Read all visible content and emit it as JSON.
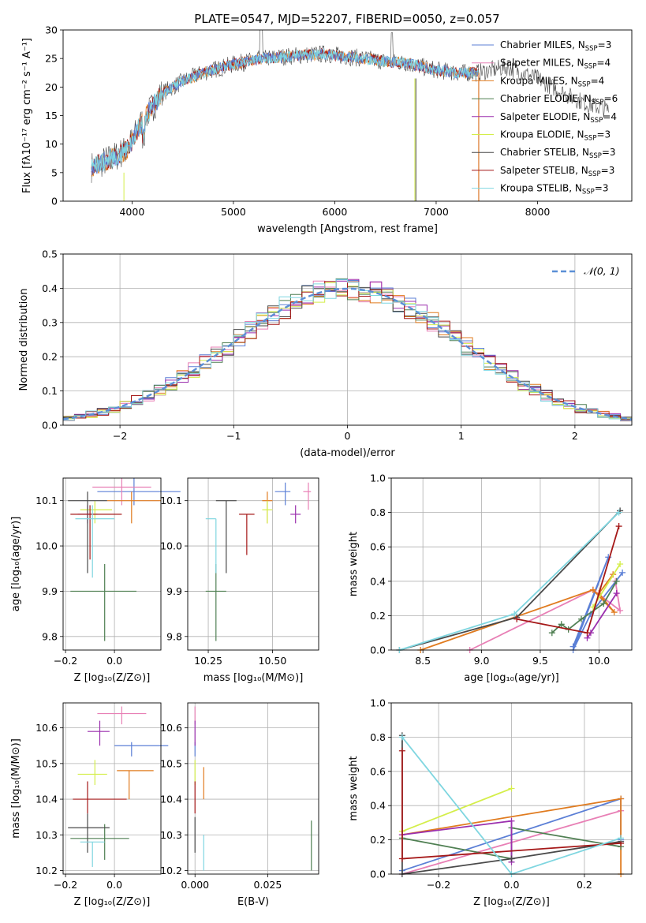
{
  "figure_title": "PLATE=0547, MJD=52207, FIBERID=0050, z=0.057",
  "colors": {
    "c_miles": "#5b7fd6",
    "s_miles": "#e87fb5",
    "k_miles": "#e07b1f",
    "c_elodie": "#4f7f52",
    "s_elodie": "#9b2fae",
    "k_elodie": "#d4ee4a",
    "c_stelib": "#4a4a4a",
    "s_stelib": "#a51818",
    "k_stelib": "#7fd6e0"
  },
  "chart_data": [
    {
      "id": "spectrum",
      "type": "line",
      "title": "PLATE=0547, MJD=52207, FIBERID=0050, z=0.057",
      "xlabel": "wavelength [Angstrom, rest frame]",
      "ylabel": "Flux [fλ10⁻¹⁷ erg cm⁻² s⁻¹ A⁻¹]",
      "xlim": [
        3320,
        8930
      ],
      "ylim": [
        0,
        30
      ],
      "xticks": [
        4000,
        5000,
        6000,
        7000,
        8000
      ],
      "yticks": [
        0,
        5,
        10,
        15,
        20,
        25,
        30
      ],
      "continuum": {
        "x": [
          3600,
          3800,
          3950,
          4100,
          4300,
          4500,
          4700,
          5000,
          5300,
          5600,
          5900,
          6200,
          6500,
          6700,
          7000,
          7200,
          7400,
          7700,
          8000,
          8300,
          8500,
          8700
        ],
        "y": [
          6,
          7.5,
          9,
          14,
          19,
          21,
          22.5,
          24,
          25,
          25.5,
          25.8,
          25.2,
          24.5,
          24.2,
          23,
          22.5,
          22.5,
          23.5,
          21.5,
          18.5,
          17,
          16
        ]
      },
      "series_legend": [
        {
          "name": "Chabrier MILES, N",
          "sub": "SSP",
          "suffix": "=3"
        },
        {
          "name": "Salpeter MILES, N",
          "sub": "SSP",
          "suffix": "=4"
        },
        {
          "name": "Kroupa MILES, N",
          "sub": "SSP",
          "suffix": "=4"
        },
        {
          "name": "Chabrier ELODIE, N",
          "sub": "SSP",
          "suffix": "=6"
        },
        {
          "name": "Salpeter ELODIE, N",
          "sub": "SSP",
          "suffix": "=4"
        },
        {
          "name": "Kroupa ELODIE, N",
          "sub": "SSP",
          "suffix": "=3"
        },
        {
          "name": "Chabrier STELIB, N",
          "sub": "SSP",
          "suffix": "=3"
        },
        {
          "name": "Salpeter STELIB, N",
          "sub": "SSP",
          "suffix": "=3"
        },
        {
          "name": "Kroupa STELIB, N",
          "sub": "SSP",
          "suffix": "=3"
        }
      ],
      "legend_position": "top-right"
    },
    {
      "id": "residuals",
      "type": "histogram",
      "xlabel": "(data-model)/error",
      "ylabel": "Normed distribution",
      "xlim": [
        -2.5,
        2.5
      ],
      "ylim": [
        0,
        0.5
      ],
      "xticks": [
        -2,
        -1,
        0,
        1,
        2
      ],
      "yticks": [
        0.0,
        0.1,
        0.2,
        0.3,
        0.4,
        0.5
      ],
      "bin_width": 0.1,
      "legend_label": "𝒩(0, 1)",
      "reference_curve": "normal(0,1)",
      "grid": true,
      "legend_position": "top-right"
    },
    {
      "id": "age_vs_Z",
      "type": "errorbar",
      "xlabel": "Z [log₁₀(Z/Z⊙)]",
      "ylabel": "age  [log₁₀(age/yr)]",
      "xlim": [
        -0.21,
        0.19
      ],
      "ylim": [
        9.77,
        10.15
      ],
      "xticks": [
        -0.2,
        0.0
      ],
      "yticks": [
        9.8,
        9.9,
        10.0,
        10.1
      ],
      "points": [
        {
          "s": "c_miles",
          "x": 0.08,
          "y": 10.12,
          "xl": 0.15,
          "xr": 0.19,
          "yl": 0.03,
          "yh": 0.03
        },
        {
          "s": "s_miles",
          "x": 0.03,
          "y": 10.13,
          "xl": 0.12,
          "xr": 0.12,
          "yl": 0.04,
          "yh": 0.02
        },
        {
          "s": "k_miles",
          "x": 0.07,
          "y": 10.1,
          "xl": 0.1,
          "xr": 0.12,
          "yl": 0.05,
          "yh": 0.02
        },
        {
          "s": "c_elodie",
          "x": -0.04,
          "y": 9.9,
          "xl": 0.14,
          "xr": 0.13,
          "yl": 0.11,
          "yh": 0.06
        },
        {
          "s": "s_elodie",
          "x": -0.11,
          "y": 10.07,
          "xl": 0.04,
          "xr": 0.04,
          "yl": 0.02,
          "yh": 0.02
        },
        {
          "s": "k_elodie",
          "x": -0.08,
          "y": 10.08,
          "xl": 0.06,
          "xr": 0.07,
          "yl": 0.03,
          "yh": 0.02
        },
        {
          "s": "c_stelib",
          "x": -0.11,
          "y": 10.1,
          "xl": 0.08,
          "xr": 0.08,
          "yl": 0.16,
          "yh": 0.02
        },
        {
          "s": "s_stelib",
          "x": -0.1,
          "y": 10.07,
          "xl": 0.08,
          "xr": 0.13,
          "yl": 0.1,
          "yh": 0.02
        },
        {
          "s": "k_stelib",
          "x": -0.09,
          "y": 10.06,
          "xl": 0.07,
          "xr": 0.09,
          "yl": 0.13,
          "yh": 0.03
        }
      ]
    },
    {
      "id": "age_vs_mass",
      "type": "errorbar",
      "xlabel": "mass [log₁₀(M/M⊙)]",
      "xlim": [
        10.17,
        10.68
      ],
      "ylim": [
        9.77,
        10.15
      ],
      "xticks": [
        10.25,
        10.5
      ],
      "yticks": [
        9.8,
        9.9,
        10.0,
        10.1
      ],
      "points": [
        {
          "s": "c_miles",
          "x": 10.55,
          "y": 10.12,
          "xl": 0.04,
          "xr": 0.02,
          "yl": 0.03,
          "yh": 0.02
        },
        {
          "s": "s_miles",
          "x": 10.64,
          "y": 10.12,
          "xl": 0.02,
          "xr": 0.01,
          "yl": 0.04,
          "yh": 0.02
        },
        {
          "s": "k_miles",
          "x": 10.48,
          "y": 10.1,
          "xl": 0.02,
          "xr": 0.02,
          "yl": 0.05,
          "yh": 0.02
        },
        {
          "s": "c_elodie",
          "x": 10.28,
          "y": 9.9,
          "xl": 0.04,
          "xr": 0.04,
          "yl": 0.11,
          "yh": 0.06
        },
        {
          "s": "s_elodie",
          "x": 10.59,
          "y": 10.07,
          "xl": 0.02,
          "xr": 0.02,
          "yl": 0.02,
          "yh": 0.02
        },
        {
          "s": "k_elodie",
          "x": 10.48,
          "y": 10.08,
          "xl": 0.02,
          "xr": 0.02,
          "yl": 0.03,
          "yh": 0.02
        },
        {
          "s": "c_stelib",
          "x": 10.32,
          "y": 10.1,
          "xl": 0.04,
          "xr": 0.04,
          "yl": 0.16,
          "yh": 0.0
        },
        {
          "s": "s_stelib",
          "x": 10.4,
          "y": 10.07,
          "xl": 0.03,
          "xr": 0.03,
          "yl": 0.09,
          "yh": 0.0
        },
        {
          "s": "k_stelib",
          "x": 10.28,
          "y": 10.06,
          "xl": 0.04,
          "xr": 0.0,
          "yl": 0.12,
          "yh": 0.0
        }
      ]
    },
    {
      "id": "weight_vs_age",
      "type": "line",
      "xlabel": "age  [log₁₀(age/yr)]",
      "ylabel": "mass weight",
      "xlim": [
        8.23,
        10.28
      ],
      "ylim": [
        0,
        1.0
      ],
      "xticks": [
        8.5,
        9.0,
        9.5,
        10.0
      ],
      "yticks": [
        0.0,
        0.2,
        0.4,
        0.6,
        0.8,
        1.0
      ],
      "series": [
        {
          "s": "c_miles",
          "x": [
            9.78,
            10.08,
            9.78,
            9.93,
            10.2
          ],
          "y": [
            0.02,
            0.54,
            0.0,
            0.21,
            0.45
          ]
        },
        {
          "s": "s_miles",
          "x": [
            8.9,
            9.95,
            10.18,
            10.14
          ],
          "y": [
            0.0,
            0.35,
            0.23,
            0.4
          ]
        },
        {
          "s": "k_miles",
          "x": [
            8.48,
            9.95,
            10.13,
            10.0,
            10.12
          ],
          "y": [
            0.0,
            0.35,
            0.22,
            0.33,
            0.44
          ]
        },
        {
          "s": "c_elodie",
          "x": [
            9.6,
            9.68,
            9.74,
            9.85,
            10.04,
            10.15
          ],
          "y": [
            0.1,
            0.15,
            0.12,
            0.18,
            0.27,
            0.4
          ]
        },
        {
          "s": "s_elodie",
          "x": [
            9.9,
            9.93,
            10.15
          ],
          "y": [
            0.07,
            0.1,
            0.33
          ]
        },
        {
          "s": "k_elodie",
          "x": [
            9.95,
            10.18
          ],
          "y": [
            0.25,
            0.5
          ]
        },
        {
          "s": "c_stelib",
          "x": [
            8.3,
            9.3,
            10.18
          ],
          "y": [
            0.0,
            0.19,
            0.81
          ]
        },
        {
          "s": "s_stelib",
          "x": [
            9.3,
            9.9,
            10.17
          ],
          "y": [
            0.18,
            0.1,
            0.72
          ]
        },
        {
          "s": "k_stelib",
          "x": [
            8.3,
            9.28,
            10.17
          ],
          "y": [
            0.0,
            0.21,
            0.8
          ]
        }
      ]
    },
    {
      "id": "mass_vs_Z",
      "type": "errorbar",
      "xlabel": "Z [log₁₀(Z/Z⊙)]",
      "ylabel": "mass [log₁₀(M/M⊙)]",
      "xlim": [
        -0.21,
        0.19
      ],
      "ylim": [
        10.19,
        10.67
      ],
      "xticks": [
        -0.2,
        0.0
      ],
      "yticks": [
        10.2,
        10.3,
        10.4,
        10.5,
        10.6
      ],
      "points": [
        {
          "s": "c_miles",
          "x": 0.07,
          "y": 10.55,
          "xl": 0.07,
          "xr": 0.15,
          "yl": 0.03,
          "yh": 0.01
        },
        {
          "s": "s_miles",
          "x": 0.03,
          "y": 10.64,
          "xl": 0.1,
          "xr": 0.1,
          "yl": 0.03,
          "yh": 0.02
        },
        {
          "s": "k_miles",
          "x": 0.06,
          "y": 10.48,
          "xl": 0.05,
          "xr": 0.1,
          "yl": 0.08,
          "yh": 0.0
        },
        {
          "s": "c_elodie",
          "x": -0.04,
          "y": 10.29,
          "xl": 0.14,
          "xr": 0.1,
          "yl": 0.06,
          "yh": 0.04
        },
        {
          "s": "s_elodie",
          "x": -0.06,
          "y": 10.59,
          "xl": 0.05,
          "xr": 0.04,
          "yl": 0.04,
          "yh": 0.03
        },
        {
          "s": "k_elodie",
          "x": -0.08,
          "y": 10.47,
          "xl": 0.07,
          "xr": 0.05,
          "yl": 0.03,
          "yh": 0.04
        },
        {
          "s": "c_stelib",
          "x": -0.11,
          "y": 10.32,
          "xl": 0.08,
          "xr": 0.09,
          "yl": 0.07,
          "yh": 0.04
        },
        {
          "s": "s_stelib",
          "x": -0.11,
          "y": 10.4,
          "xl": 0.06,
          "xr": 0.16,
          "yl": 0.04,
          "yh": 0.05
        },
        {
          "s": "k_stelib",
          "x": -0.09,
          "y": 10.28,
          "xl": 0.05,
          "xr": 0.05,
          "yl": 0.07,
          "yh": 0.0
        }
      ]
    },
    {
      "id": "mass_vs_EBV",
      "type": "errorbar",
      "xlabel": "E(B-V)",
      "xlim": [
        -0.0025,
        0.0425
      ],
      "ylim": [
        10.19,
        10.67
      ],
      "xticks": [
        0.0,
        0.025
      ],
      "xticklabels": [
        "0.000",
        "0.025"
      ],
      "yticks": [
        10.2,
        10.3,
        10.4,
        10.5,
        10.6
      ],
      "points": [
        {
          "s": "c_miles",
          "x": 0.0,
          "y": 10.55,
          "xl": 0,
          "xr": 0,
          "yl": 0.03,
          "yh": 0.01
        },
        {
          "s": "s_miles",
          "x": 0.0,
          "y": 10.64,
          "xl": 0,
          "xr": 0,
          "yl": 0.03,
          "yh": 0.02
        },
        {
          "s": "k_miles",
          "x": 0.003,
          "y": 10.45,
          "xl": 0,
          "xr": 0,
          "yl": 0.05,
          "yh": 0.04
        },
        {
          "s": "c_elodie",
          "x": 0.04,
          "y": 10.29,
          "xl": 0,
          "xr": 0,
          "yl": 0.09,
          "yh": 0.05
        },
        {
          "s": "s_elodie",
          "x": 0.0,
          "y": 10.59,
          "xl": 0,
          "xr": 0,
          "yl": 0.04,
          "yh": 0.03
        },
        {
          "s": "k_elodie",
          "x": 0.0,
          "y": 10.47,
          "xl": 0,
          "xr": 0,
          "yl": 0.03,
          "yh": 0.04
        },
        {
          "s": "c_stelib",
          "x": 0.0,
          "y": 10.3,
          "xl": 0,
          "xr": 0,
          "yl": 0.05,
          "yh": 0.05
        },
        {
          "s": "s_stelib",
          "x": 0.0,
          "y": 10.4,
          "xl": 0,
          "xr": 0,
          "yl": 0.04,
          "yh": 0.05
        },
        {
          "s": "k_stelib",
          "x": 0.003,
          "y": 10.26,
          "xl": 0,
          "xr": 0,
          "yl": 0.06,
          "yh": 0.04
        }
      ]
    },
    {
      "id": "weight_vs_Z",
      "type": "line",
      "xlabel": "Z [log₁₀(Z/Z⊙)]",
      "ylabel": "mass weight",
      "xlim": [
        -0.33,
        0.33
      ],
      "ylim": [
        0,
        1.0
      ],
      "xticks": [
        -0.2,
        0.0,
        0.2
      ],
      "yticks": [
        0.0,
        0.2,
        0.4,
        0.6,
        0.8,
        1.0
      ],
      "series": [
        {
          "s": "c_miles",
          "x": [
            -0.3,
            0.3,
            0.3
          ],
          "y": [
            0.02,
            0.44,
            0.2
          ]
        },
        {
          "s": "s_miles",
          "x": [
            -0.3,
            0.3
          ],
          "y": [
            0.0,
            0.37
          ]
        },
        {
          "s": "k_miles",
          "x": [
            -0.3,
            0.3,
            0.3
          ],
          "y": [
            0.23,
            0.44,
            0.0
          ]
        },
        {
          "s": "c_elodie",
          "x": [
            -0.3,
            0.0,
            0.0,
            0.3
          ],
          "y": [
            0.21,
            0.09,
            0.27,
            0.16
          ]
        },
        {
          "s": "s_elodie",
          "x": [
            -0.3,
            0.0,
            0.0
          ],
          "y": [
            0.23,
            0.31,
            0.07
          ]
        },
        {
          "s": "k_elodie",
          "x": [
            -0.3,
            0.0
          ],
          "y": [
            0.25,
            0.5
          ]
        },
        {
          "s": "c_stelib",
          "x": [
            -0.3,
            -0.3,
            0.0,
            0.3
          ],
          "y": [
            0.81,
            0.0,
            0.09,
            0.19
          ]
        },
        {
          "s": "s_stelib",
          "x": [
            -0.3,
            -0.3,
            0.3
          ],
          "y": [
            0.72,
            0.09,
            0.18
          ]
        },
        {
          "s": "k_stelib",
          "x": [
            -0.3,
            0.0,
            0.3
          ],
          "y": [
            0.8,
            0.0,
            0.21
          ]
        }
      ]
    }
  ]
}
